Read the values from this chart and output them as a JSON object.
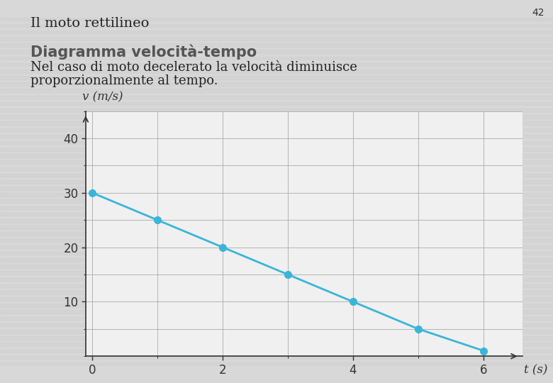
{
  "page_number": "42",
  "header_title": "Il moto rettilineo",
  "red_bar_color": "#c0272d",
  "subtitle": "Diagramma velocità-tempo",
  "subtitle_color": "#555555",
  "body_text_line1": "Nel caso di moto decelerato la velocità diminuisce",
  "body_text_line2": "proporzionalmente al tempo.",
  "body_text_color": "#222222",
  "background_color": "#d8d8d8",
  "stripe_color_a": "#d0d0d0",
  "stripe_color_b": "#dadada",
  "plot_background": "#f0f0f0",
  "plot_grid_bg": "#e8e8e8",
  "x_data": [
    0,
    1,
    2,
    3,
    4,
    5,
    6
  ],
  "y_data": [
    30,
    25,
    20,
    15,
    10,
    5,
    1
  ],
  "line_color": "#3ab5d8",
  "dot_color": "#3ab5d8",
  "xlabel": "t (s)",
  "ylabel": "v (m/s)",
  "xlim": [
    -0.1,
    6.6
  ],
  "ylim": [
    0,
    45
  ],
  "xticks": [
    0,
    2,
    4,
    6
  ],
  "yticks": [
    10,
    20,
    30,
    40
  ],
  "grid_color": "#aaaaaa",
  "axis_color": "#333333",
  "tick_label_fontsize": 12,
  "axis_label_fontsize": 12,
  "dot_size": 7,
  "line_width": 2.0,
  "header_fontsize": 14,
  "subtitle_fontsize": 15,
  "body_fontsize": 13
}
